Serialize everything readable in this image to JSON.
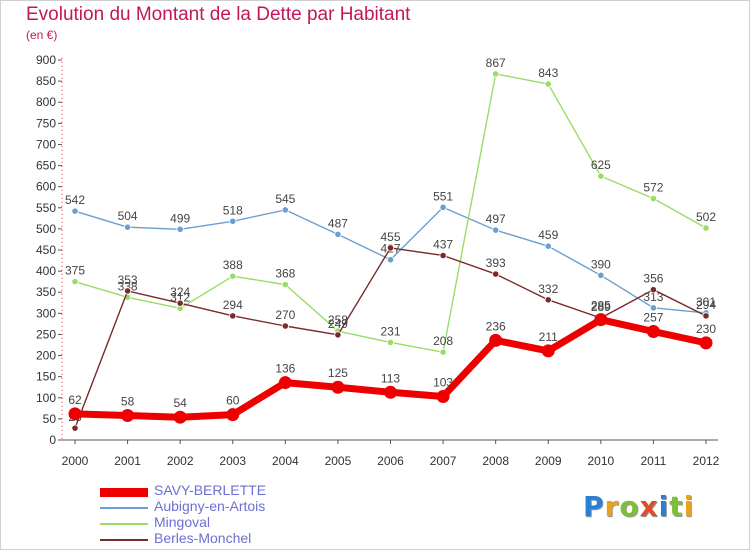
{
  "title": "Evolution du Montant de la Dette par Habitant",
  "subtitle": "(en €)",
  "logo": {
    "text": "Proxiti",
    "letters": [
      {
        "ch": "P",
        "color": "#2a7fd4"
      },
      {
        "ch": "r",
        "color": "#e8a21c"
      },
      {
        "ch": "o",
        "color": "#7cbf3a"
      },
      {
        "ch": "x",
        "color": "#e04b2a"
      },
      {
        "ch": "i",
        "color": "#2a7fd4"
      },
      {
        "ch": "t",
        "color": "#7cbf3a"
      },
      {
        "ch": "i",
        "color": "#e8a21c"
      }
    ]
  },
  "chart_data": {
    "type": "line",
    "x": [
      "2000",
      "2001",
      "2002",
      "2003",
      "2004",
      "2005",
      "2006",
      "2007",
      "2008",
      "2009",
      "2010",
      "2011",
      "2012"
    ],
    "ylim": [
      0,
      900
    ],
    "yticks": [
      0,
      50,
      100,
      150,
      200,
      250,
      300,
      350,
      400,
      450,
      500,
      550,
      600,
      650,
      700,
      750,
      800,
      850,
      900
    ],
    "grid": false,
    "legend_position": "bottom",
    "series": [
      {
        "name": "SAVY-BERLETTE",
        "color": "#ee0000",
        "values": [
          62,
          58,
          54,
          60,
          136,
          125,
          113,
          103,
          236,
          211,
          285,
          257,
          230
        ],
        "emphasis": true
      },
      {
        "name": "Aubigny-en-Artois",
        "color": "#6b9fd0",
        "values": [
          542,
          504,
          499,
          518,
          545,
          487,
          427,
          551,
          497,
          459,
          390,
          313,
          301
        ],
        "emphasis": false
      },
      {
        "name": "Mingoval",
        "color": "#99dd66",
        "values": [
          375,
          338,
          312,
          388,
          368,
          258,
          231,
          208,
          867,
          843,
          625,
          572,
          502
        ],
        "emphasis": false
      },
      {
        "name": "Berles-Monchel",
        "color": "#7a2a2a",
        "values": [
          28,
          353,
          324,
          294,
          270,
          249,
          455,
          437,
          393,
          332,
          289,
          356,
          294
        ],
        "emphasis": false
      }
    ]
  }
}
